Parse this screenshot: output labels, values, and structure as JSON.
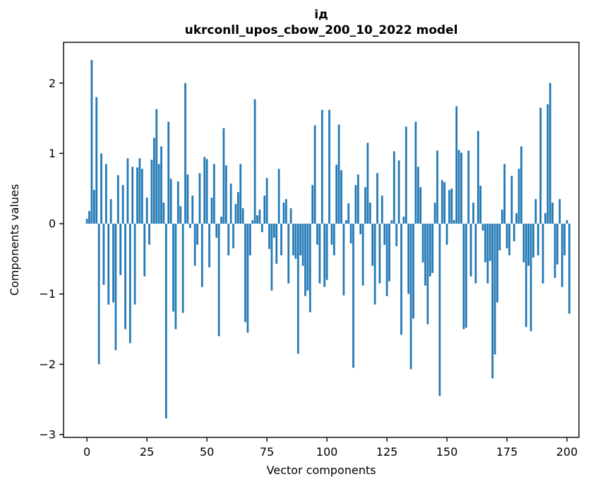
{
  "figure": {
    "title": "ід",
    "subtitle": "ukrconll_upos_cbow_200_10_2022 model",
    "xlabel": "Vector components",
    "ylabel": "Components values"
  },
  "chart_data": {
    "type": "bar",
    "title": "ід",
    "subtitle": "ukrconll_upos_cbow_200_10_2022 model",
    "xlabel": "Vector components",
    "ylabel": "Components values",
    "bar_color": "#1f77b4",
    "xlim": [
      -9.74,
      205.0
    ],
    "ylim": [
      -3.04,
      2.58
    ],
    "xticks": [
      0,
      25,
      50,
      75,
      100,
      125,
      150,
      175,
      200
    ],
    "yticks": [
      2,
      1,
      0,
      -1,
      -2,
      -3
    ],
    "grid": false,
    "legend": null,
    "x_start": 0,
    "values": [
      0.07,
      0.18,
      2.33,
      0.48,
      1.8,
      -2.0,
      1.0,
      -0.87,
      0.85,
      -1.15,
      0.35,
      -1.12,
      -1.8,
      0.69,
      -0.73,
      0.55,
      -1.5,
      0.93,
      -1.7,
      0.81,
      -1.15,
      0.8,
      0.93,
      0.78,
      -0.75,
      0.37,
      -0.3,
      0.91,
      1.22,
      1.63,
      0.85,
      1.1,
      0.3,
      -2.77,
      1.45,
      0.64,
      -1.25,
      -1.5,
      0.6,
      0.25,
      -1.27,
      2.0,
      0.7,
      -0.06,
      0.4,
      -0.6,
      -0.3,
      0.72,
      -0.9,
      0.95,
      0.92,
      -0.62,
      0.37,
      0.85,
      -0.2,
      -1.6,
      0.1,
      1.36,
      0.83,
      -0.45,
      0.57,
      -0.35,
      0.28,
      0.45,
      0.85,
      0.22,
      -1.4,
      -1.55,
      -0.45,
      0.05,
      1.77,
      0.12,
      0.2,
      -0.12,
      0.4,
      0.65,
      -0.36,
      -0.95,
      -0.2,
      -0.57,
      0.78,
      -0.45,
      0.3,
      0.35,
      -0.85,
      0.22,
      -0.45,
      -0.5,
      -1.85,
      -0.45,
      -0.6,
      -1.03,
      -0.95,
      -1.26,
      0.55,
      1.4,
      -0.3,
      -0.85,
      1.62,
      -0.9,
      -0.8,
      1.62,
      -0.3,
      -0.45,
      0.84,
      1.41,
      0.76,
      -1.02,
      0.05,
      0.29,
      -0.28,
      -2.05,
      0.55,
      0.7,
      -0.15,
      -0.88,
      0.52,
      1.15,
      0.3,
      -0.6,
      -1.15,
      0.72,
      -0.85,
      0.4,
      -0.3,
      -1.03,
      -0.82,
      0.05,
      1.03,
      -0.32,
      0.9,
      -1.58,
      0.1,
      1.38,
      -1.0,
      -2.07,
      -1.35,
      1.45,
      0.81,
      0.52,
      -0.55,
      -0.88,
      -1.43,
      -0.75,
      -0.7,
      0.3,
      1.04,
      -2.45,
      0.62,
      0.59,
      -0.3,
      0.48,
      0.5,
      0.05,
      1.67,
      1.05,
      1.01,
      -1.5,
      -1.48,
      1.04,
      -0.75,
      0.3,
      -0.85,
      1.32,
      0.54,
      -0.1,
      -0.55,
      -0.85,
      -0.53,
      -2.2,
      -1.86,
      -1.12,
      -0.38,
      0.2,
      0.85,
      -0.35,
      -0.45,
      0.68,
      -0.25,
      0.15,
      0.78,
      1.1,
      -0.55,
      -1.47,
      -0.6,
      -1.53,
      -0.48,
      0.35,
      -0.45,
      1.65,
      -0.85,
      0.15,
      1.7,
      2.0,
      0.3,
      -0.77,
      -0.58,
      0.35,
      -0.9,
      -0.45,
      0.05,
      -1.28
    ]
  }
}
